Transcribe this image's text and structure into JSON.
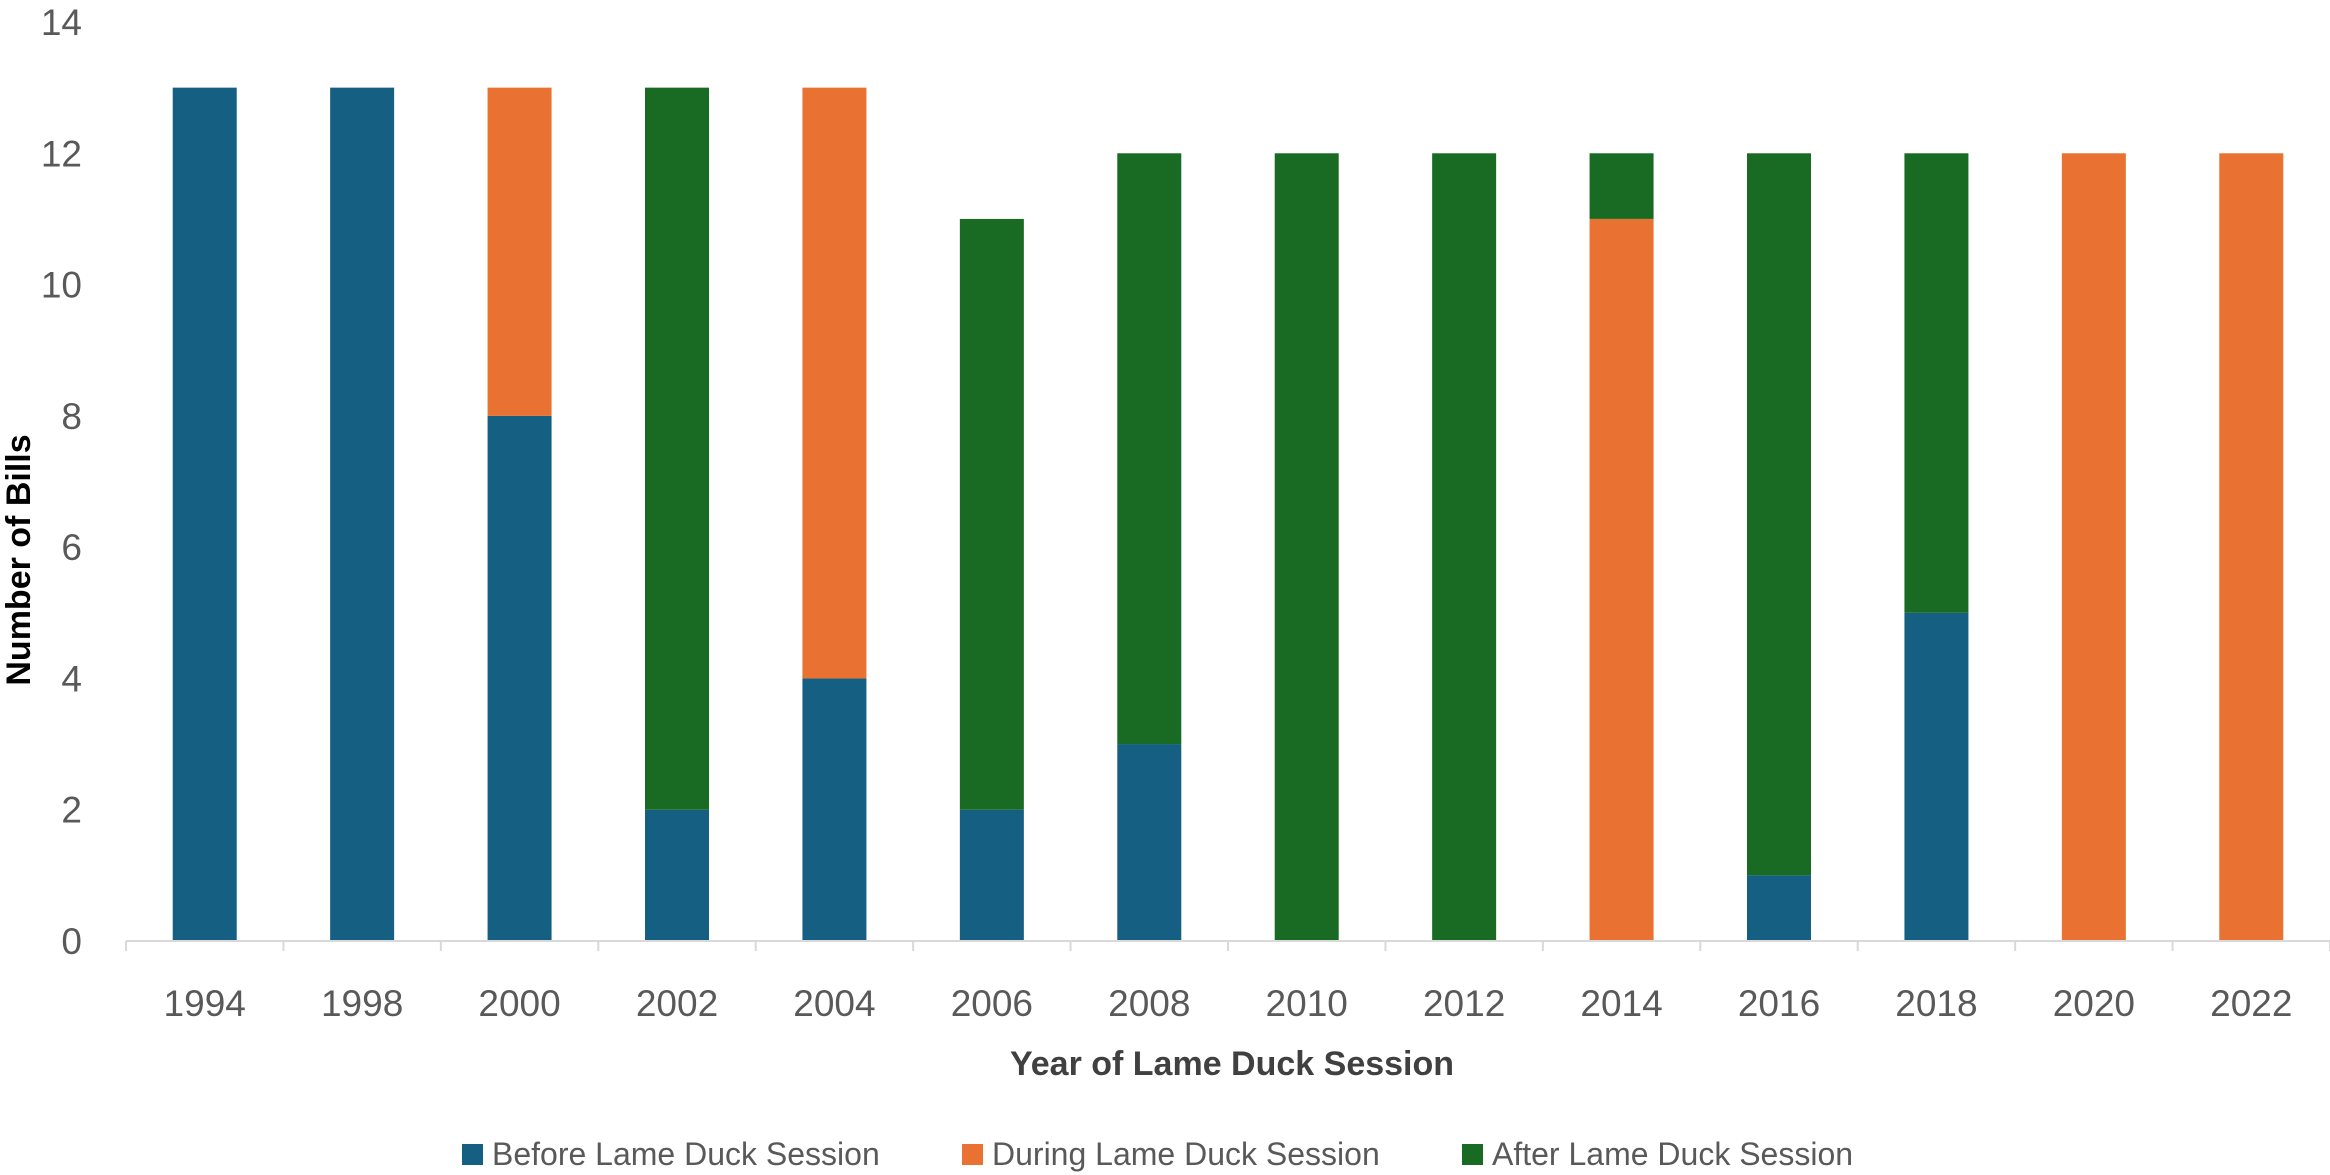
{
  "chart_data": {
    "type": "bar",
    "stacked": true,
    "title": "",
    "xlabel": "Year of Lame Duck Session",
    "ylabel": "Number of Bills",
    "ylim": [
      0,
      14
    ],
    "yticks": [
      0,
      2,
      4,
      6,
      8,
      10,
      12,
      14
    ],
    "grid": false,
    "legend_position": "bottom",
    "categories": [
      "1994",
      "1998",
      "2000",
      "2002",
      "2004",
      "2006",
      "2008",
      "2010",
      "2012",
      "2014",
      "2016",
      "2018",
      "2020",
      "2022"
    ],
    "series": [
      {
        "name": "Before Lame Duck Session",
        "color": "#155f83",
        "values": [
          13,
          13,
          8,
          2,
          4,
          2,
          3,
          0,
          0,
          0,
          1,
          5,
          0,
          0
        ]
      },
      {
        "name": "During Lame Duck Session",
        "color": "#e97132",
        "values": [
          0,
          0,
          5,
          0,
          9,
          0,
          0,
          0,
          0,
          11,
          0,
          0,
          12,
          12
        ]
      },
      {
        "name": "After Lame Duck Session",
        "color": "#196b24",
        "values": [
          0,
          0,
          0,
          11,
          0,
          9,
          9,
          12,
          12,
          1,
          11,
          7,
          0,
          0
        ]
      }
    ]
  }
}
